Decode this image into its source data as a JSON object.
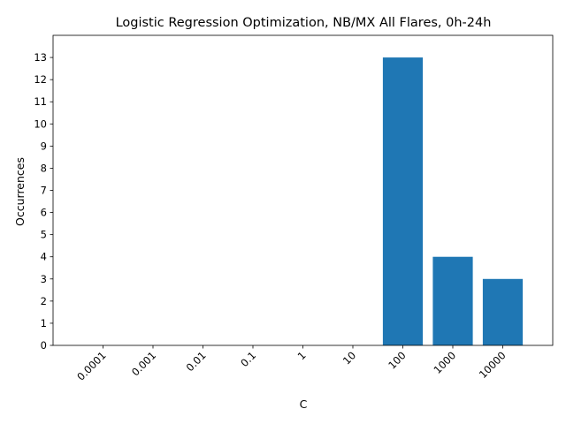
{
  "chart_data": {
    "type": "bar",
    "title": "Logistic Regression Optimization, NB/MX All Flares, 0h-24h",
    "xlabel": "C",
    "ylabel": "Occurrences",
    "categories": [
      "0.0001",
      "0.001",
      "0.01",
      "0.1",
      "1",
      "10",
      "100",
      "1000",
      "10000"
    ],
    "values": [
      0,
      0,
      0,
      0,
      0,
      0,
      13,
      4,
      3
    ],
    "ylim": [
      0,
      14
    ],
    "yticks": [
      0,
      1,
      2,
      3,
      4,
      5,
      6,
      7,
      8,
      9,
      10,
      11,
      12,
      13
    ],
    "grid": false,
    "bar_color": "#1f77b4",
    "xtick_rotation_deg": 45
  }
}
